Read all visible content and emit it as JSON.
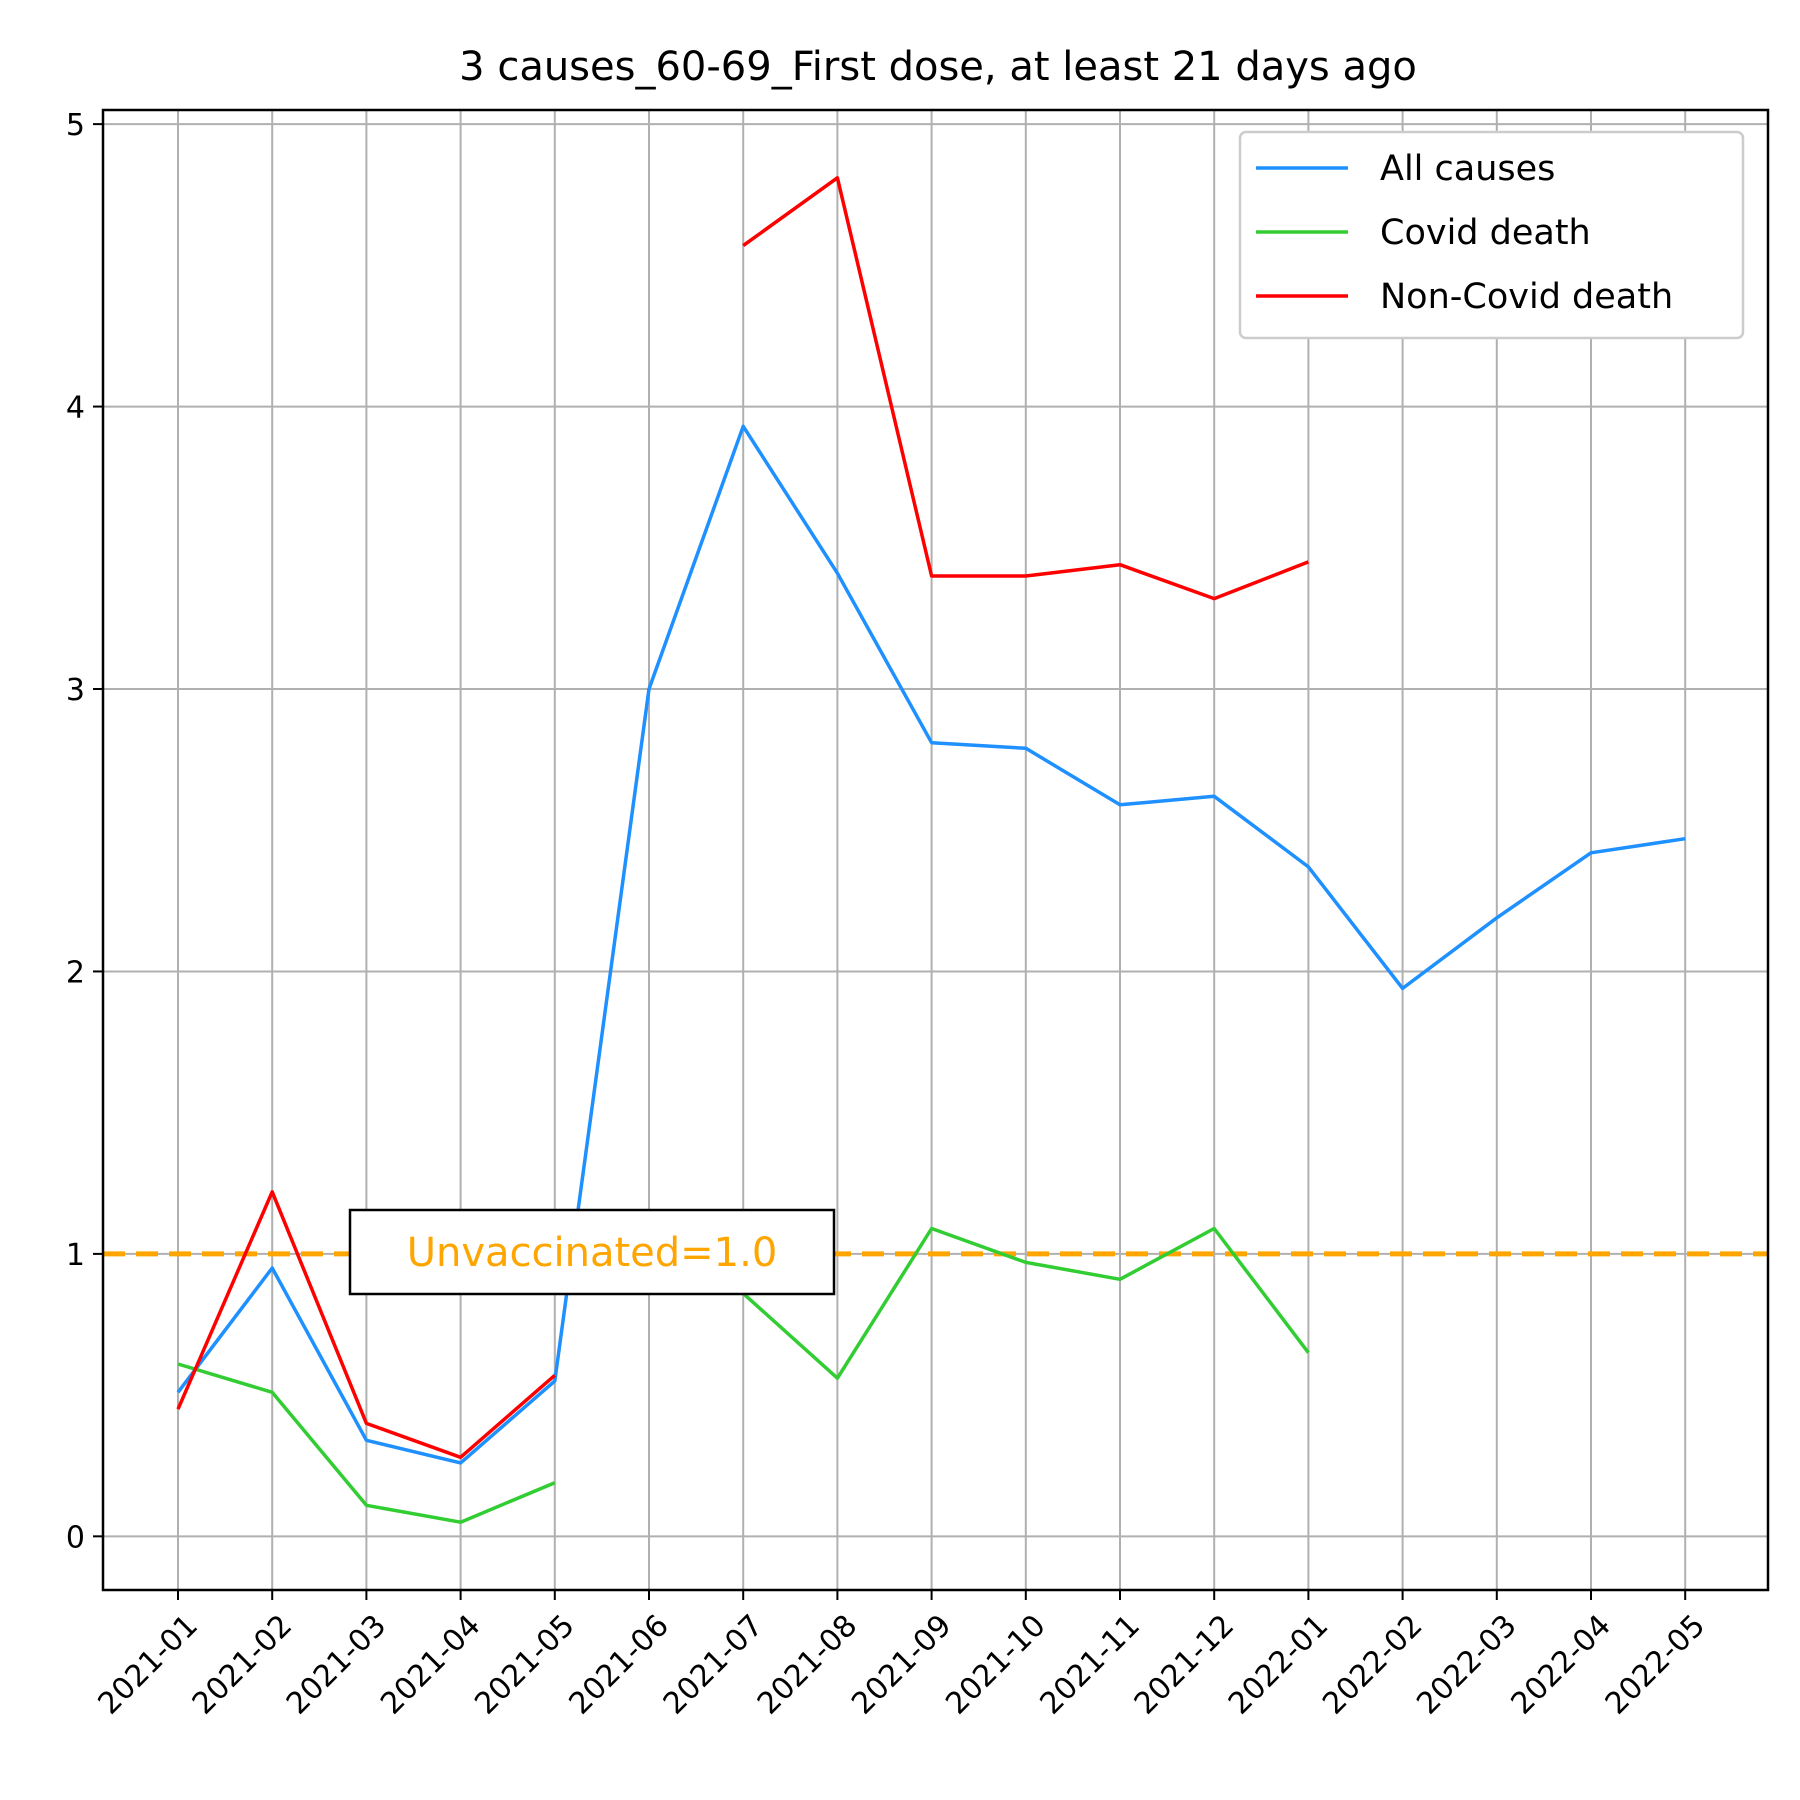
{
  "chart_data": {
    "type": "line",
    "title": "3 causes_60-69_First dose, at least 21 days ago",
    "xlabel": "",
    "ylabel": "",
    "categories": [
      "2021-01",
      "2021-02",
      "2021-03",
      "2021-04",
      "2021-05",
      "2021-06",
      "2021-07",
      "2021-08",
      "2021-09",
      "2021-10",
      "2021-11",
      "2021-12",
      "2022-01",
      "2022-02",
      "2022-03",
      "2022-04",
      "2022-05"
    ],
    "ylim": [
      -0.19,
      5.05
    ],
    "yticks": [
      0,
      1,
      2,
      3,
      4,
      5
    ],
    "grid": true,
    "legend_position": "top-right",
    "series": [
      {
        "name": "All causes",
        "color": "#1e90ff",
        "values": [
          0.51,
          0.95,
          0.34,
          0.26,
          0.55,
          3.0,
          3.93,
          3.41,
          2.81,
          2.79,
          2.59,
          2.62,
          2.37,
          1.94,
          2.19,
          2.42,
          2.47
        ]
      },
      {
        "name": "Covid death",
        "color": "#32cd32",
        "values": [
          0.61,
          0.51,
          0.11,
          0.05,
          0.19,
          null,
          0.86,
          0.56,
          1.09,
          0.97,
          0.91,
          1.09,
          0.65,
          null,
          null,
          null,
          null
        ]
      },
      {
        "name": "Non-Covid death",
        "color": "#ff0000",
        "values": [
          0.45,
          1.22,
          0.4,
          0.28,
          0.57,
          null,
          4.57,
          4.81,
          3.4,
          3.4,
          3.44,
          3.32,
          3.45,
          null,
          null,
          null,
          null
        ]
      }
    ],
    "reference_line": {
      "y": 1.0,
      "color": "#ffa500",
      "style": "dashed"
    },
    "annotation": {
      "text": "Unvaccinated=1.0",
      "color": "#ffa500",
      "x_category": "2021-03",
      "y": 1.0
    }
  }
}
